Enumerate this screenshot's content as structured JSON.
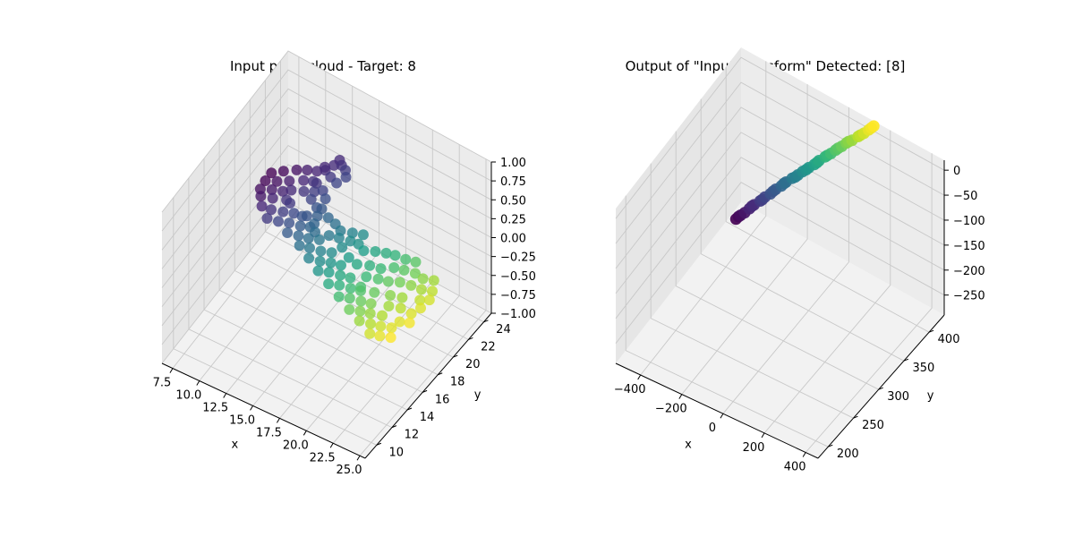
{
  "chart_data": [
    {
      "type": "scatter",
      "title": "Input point cloud - Target: 8",
      "xlabel": "x",
      "ylabel": "y",
      "zlabel": "",
      "projection": "3d",
      "colormap": "viridis",
      "xlim": [
        6.5,
        25.5
      ],
      "ylim": [
        8.5,
        25
      ],
      "zlim": [
        -1.0,
        1.0
      ],
      "xticks": [
        "7.5",
        "10.0",
        "12.5",
        "15.0",
        "17.5",
        "20.0",
        "22.5",
        "25.0"
      ],
      "yticks": [
        "10",
        "12",
        "14",
        "16",
        "18",
        "20",
        "22",
        "24"
      ],
      "zticks": [
        "1.00",
        "0.75",
        "0.50",
        "0.25",
        "0.00",
        "−0.25",
        "−0.50",
        "−0.75",
        "−1.00"
      ],
      "xtick_values": [
        7.5,
        10.0,
        12.5,
        15.0,
        17.5,
        20.0,
        22.5,
        25.0
      ],
      "ytick_values": [
        10,
        12,
        14,
        16,
        18,
        20,
        22,
        24
      ],
      "ztick_values": [
        1.0,
        0.75,
        0.5,
        0.25,
        0.0,
        -0.25,
        -0.5,
        -0.75,
        -1.0
      ],
      "points": [
        [
          11.5,
          24.0,
          0.0
        ],
        [
          12.0,
          24.3,
          0.0
        ],
        [
          12.5,
          24.1,
          0.0
        ],
        [
          11.2,
          23.3,
          0.0
        ],
        [
          11.9,
          23.0,
          0.0
        ],
        [
          12.6,
          22.8,
          0.0
        ],
        [
          11.3,
          22.0,
          0.0
        ],
        [
          12.1,
          21.7,
          0.0
        ],
        [
          12.7,
          21.2,
          0.0
        ],
        [
          11.8,
          20.6,
          0.0
        ],
        [
          12.6,
          20.2,
          0.0
        ],
        [
          13.1,
          19.6,
          0.0
        ],
        [
          12.4,
          19.2,
          0.0
        ],
        [
          13.3,
          18.9,
          0.0
        ],
        [
          13.8,
          18.3,
          0.0
        ],
        [
          7.8,
          21.0,
          0.0
        ],
        [
          8.5,
          21.6,
          0.0
        ],
        [
          9.3,
          22.2,
          0.0
        ],
        [
          10.0,
          22.6,
          0.0
        ],
        [
          10.7,
          22.9,
          0.0
        ],
        [
          7.8,
          20.2,
          0.0
        ],
        [
          8.6,
          20.6,
          0.0
        ],
        [
          9.4,
          21.1,
          0.0
        ],
        [
          10.3,
          21.7,
          0.0
        ],
        [
          11.0,
          22.0,
          0.0
        ],
        [
          7.9,
          19.4,
          0.0
        ],
        [
          8.7,
          19.8,
          0.0
        ],
        [
          9.5,
          20.1,
          0.0
        ],
        [
          8.3,
          18.9,
          0.0
        ],
        [
          9.2,
          19.2,
          0.0
        ],
        [
          10.2,
          19.6,
          0.0
        ],
        [
          10.0,
          20.5,
          0.0
        ],
        [
          10.9,
          20.9,
          0.0
        ],
        [
          11.6,
          21.3,
          0.0
        ],
        [
          10.6,
          19.5,
          0.0
        ],
        [
          8.9,
          18.2,
          0.0
        ],
        [
          9.7,
          18.3,
          0.0
        ],
        [
          10.6,
          18.6,
          0.0
        ],
        [
          11.4,
          18.9,
          0.0
        ],
        [
          12.1,
          19.0,
          0.0
        ],
        [
          9.9,
          17.5,
          0.0
        ],
        [
          10.8,
          17.7,
          0.0
        ],
        [
          11.6,
          18.0,
          0.0
        ],
        [
          12.5,
          18.2,
          0.0
        ],
        [
          13.2,
          18.5,
          0.0
        ],
        [
          12.0,
          17.2,
          0.0
        ],
        [
          12.9,
          17.4,
          0.0
        ],
        [
          13.7,
          17.6,
          0.0
        ],
        [
          14.5,
          17.9,
          0.0
        ],
        [
          13.5,
          16.7,
          0.0
        ],
        [
          14.3,
          16.9,
          0.0
        ],
        [
          15.2,
          17.1,
          0.0
        ],
        [
          16.0,
          17.4,
          0.0
        ],
        [
          14.8,
          16.1,
          0.0
        ],
        [
          15.7,
          16.3,
          0.0
        ],
        [
          16.5,
          16.6,
          0.0
        ],
        [
          17.3,
          16.8,
          0.0
        ],
        [
          16.1,
          15.5,
          0.0
        ],
        [
          16.9,
          15.8,
          0.0
        ],
        [
          17.8,
          16.0,
          0.0
        ],
        [
          18.6,
          16.2,
          0.0
        ],
        [
          17.5,
          14.9,
          0.0
        ],
        [
          18.3,
          15.2,
          0.0
        ],
        [
          19.2,
          15.4,
          0.0
        ],
        [
          20.0,
          15.6,
          0.0
        ],
        [
          18.9,
          14.3,
          0.0
        ],
        [
          19.7,
          14.6,
          0.0
        ],
        [
          20.6,
          14.8,
          0.0
        ],
        [
          21.4,
          15.0,
          0.0
        ],
        [
          20.3,
          13.7,
          0.0
        ],
        [
          21.1,
          14.0,
          0.0
        ],
        [
          21.9,
          14.2,
          0.0
        ],
        [
          22.8,
          14.5,
          0.0
        ],
        [
          21.6,
          13.2,
          0.0
        ],
        [
          22.5,
          13.4,
          0.0
        ],
        [
          23.3,
          13.6,
          0.0
        ],
        [
          24.1,
          13.9,
          0.0
        ],
        [
          23.0,
          12.6,
          0.0
        ],
        [
          23.8,
          12.8,
          0.0
        ],
        [
          24.6,
          13.1,
          0.0
        ],
        [
          14.9,
          18.6,
          0.0
        ],
        [
          15.7,
          18.8,
          0.0
        ],
        [
          16.6,
          19.0,
          0.0
        ],
        [
          17.3,
          19.1,
          0.0
        ],
        [
          18.0,
          18.8,
          0.0
        ],
        [
          15.4,
          19.4,
          0.0
        ],
        [
          16.3,
          19.7,
          0.0
        ],
        [
          17.1,
          20.0,
          0.0
        ],
        [
          18.8,
          19.2,
          0.0
        ],
        [
          19.6,
          19.5,
          0.0
        ],
        [
          20.3,
          19.7,
          0.0
        ],
        [
          21.2,
          19.8,
          0.0
        ],
        [
          22.0,
          20.0,
          0.0
        ],
        [
          20.9,
          18.7,
          0.0
        ],
        [
          21.7,
          18.9,
          0.0
        ],
        [
          22.6,
          19.1,
          0.0
        ],
        [
          23.4,
          19.0,
          0.0
        ],
        [
          24.2,
          19.3,
          0.0
        ],
        [
          22.1,
          17.8,
          0.0
        ],
        [
          23.0,
          18.0,
          0.0
        ],
        [
          23.9,
          18.1,
          0.0
        ],
        [
          24.7,
          18.4,
          0.0
        ],
        [
          24.4,
          17.2,
          0.0
        ],
        [
          25.0,
          17.6,
          0.0
        ],
        [
          24.9,
          16.6,
          0.0
        ],
        [
          24.6,
          15.8,
          0.0
        ],
        [
          25.0,
          15.0,
          0.0
        ],
        [
          24.3,
          14.7,
          0.0
        ],
        [
          19.2,
          17.9,
          0.0
        ],
        [
          20.1,
          18.1,
          0.0
        ],
        [
          18.3,
          17.5,
          0.0
        ],
        [
          17.4,
          17.7,
          0.0
        ],
        [
          16.4,
          18.2,
          0.0
        ],
        [
          19.6,
          16.9,
          0.0
        ],
        [
          20.5,
          17.2,
          0.0
        ],
        [
          21.3,
          17.4,
          0.0
        ],
        [
          22.2,
          16.4,
          0.0
        ],
        [
          23.1,
          16.7,
          0.0
        ],
        [
          22.7,
          15.5,
          0.0
        ],
        [
          23.6,
          15.8,
          0.0
        ],
        [
          21.0,
          16.0,
          0.0
        ],
        [
          19.8,
          15.9,
          0.0
        ],
        [
          13.0,
          20.3,
          0.0
        ],
        [
          13.9,
          19.9,
          0.0
        ],
        [
          14.7,
          19.7,
          0.0
        ],
        [
          11.0,
          23.5,
          0.0
        ],
        [
          12.9,
          23.6,
          0.0
        ],
        [
          11.6,
          24.6,
          0.0
        ]
      ]
    },
    {
      "type": "scatter",
      "title": "Output of \"Input Transform\" Detected: [8]",
      "xlabel": "x",
      "ylabel": "y",
      "zlabel": "",
      "projection": "3d",
      "colormap": "viridis",
      "xlim": [
        -520,
        460
      ],
      "ylim": [
        180,
        430
      ],
      "zlim": [
        -290,
        20
      ],
      "xticks": [
        "−400",
        "−200",
        "0",
        "200",
        "400"
      ],
      "yticks": [
        "200",
        "250",
        "300",
        "350",
        "400"
      ],
      "zticks": [
        "0",
        "−50",
        "−100",
        "−150",
        "−200",
        "−250"
      ],
      "xtick_values": [
        -400,
        -200,
        0,
        200,
        400
      ],
      "ytick_values": [
        200,
        250,
        300,
        350,
        400
      ],
      "ztick_values": [
        0,
        -50,
        -100,
        -150,
        -200,
        -250
      ],
      "points": [
        [
          -460,
          395,
          -265
        ],
        [
          -450,
          396,
          -259
        ],
        [
          -425,
          398,
          -248
        ],
        [
          -405,
          399,
          -237
        ],
        [
          -385,
          400,
          -226
        ],
        [
          -360,
          402,
          -215
        ],
        [
          -340,
          403,
          -204
        ],
        [
          -315,
          404,
          -193
        ],
        [
          -295,
          406,
          -182
        ],
        [
          -270,
          407,
          -171
        ],
        [
          -250,
          408,
          -160
        ],
        [
          -225,
          410,
          -149
        ],
        [
          -200,
          411,
          -138
        ],
        [
          -180,
          412,
          -128
        ],
        [
          -155,
          414,
          -117
        ],
        [
          -130,
          415,
          -106
        ],
        [
          -110,
          416,
          -95
        ],
        [
          -85,
          418,
          -84
        ],
        [
          -60,
          419,
          -73
        ],
        [
          -40,
          420,
          -63
        ],
        [
          -15,
          422,
          -52
        ],
        [
          5,
          423,
          -42
        ],
        [
          30,
          424,
          -32
        ],
        [
          55,
          426,
          -21
        ],
        [
          80,
          427,
          -10
        ],
        [
          100,
          428,
          0
        ],
        [
          120,
          430,
          10
        ],
        [
          -440,
          396,
          -254
        ],
        [
          -395,
          400,
          -231
        ],
        [
          -350,
          402,
          -210
        ],
        [
          -305,
          405,
          -187
        ],
        [
          -260,
          408,
          -165
        ],
        [
          -210,
          410,
          -143
        ],
        [
          -165,
          413,
          -122
        ],
        [
          -120,
          416,
          -101
        ],
        [
          -75,
          418,
          -79
        ],
        [
          -30,
          421,
          -58
        ],
        [
          15,
          423,
          -37
        ],
        [
          65,
          426,
          -16
        ],
        [
          110,
          429,
          5
        ]
      ]
    }
  ]
}
